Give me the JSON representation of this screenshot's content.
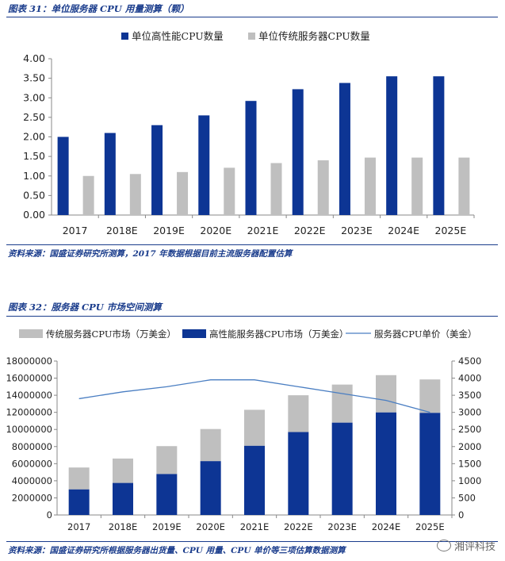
{
  "figure1": {
    "title": "图表 31：单位服务器 CPU 用量测算（颗）",
    "source": "资料来源：国盛证券研究所测算，2017 年数据根据目前主流服务器配置估算",
    "colors": {
      "high": "#0d3594",
      "trad": "#bfbfbf"
    },
    "chart_data": {
      "type": "bar",
      "categories": [
        "2017",
        "2018E",
        "2019E",
        "2020E",
        "2021E",
        "2022E",
        "2023E",
        "2024E",
        "2025E"
      ],
      "series": [
        {
          "name": "单位高性能CPU数量",
          "values": [
            2.0,
            2.1,
            2.3,
            2.55,
            2.92,
            3.22,
            3.38,
            3.55,
            3.55
          ]
        },
        {
          "name": "单位传统服务器CPU数量",
          "values": [
            1.0,
            1.05,
            1.1,
            1.21,
            1.33,
            1.4,
            1.47,
            1.47,
            1.47
          ]
        }
      ],
      "yticks": [
        "0.00",
        "0.50",
        "1.00",
        "1.50",
        "2.00",
        "2.50",
        "3.00",
        "3.50",
        "4.00"
      ],
      "ylim": [
        0,
        4
      ],
      "legend": "top"
    }
  },
  "figure2": {
    "title": "图表 32：服务器 CPU 市场空间测算",
    "source": "资料来源：国盛证券研究所根据服务器出货量、CPU 用量、CPU 单价等三项估算数据测算",
    "colors": {
      "high": "#0d3594",
      "trad": "#bfbfbf",
      "line": "#4a7ec2"
    },
    "chart_data": {
      "type": "bar",
      "stacked": true,
      "categories": [
        "2017",
        "2018E",
        "2019E",
        "2020E",
        "2021E",
        "2022E",
        "2023E",
        "2024E",
        "2025E"
      ],
      "series": [
        {
          "name": "高性能服务器CPU市场（万美金）",
          "values": [
            3000000,
            3750000,
            4800000,
            6300000,
            8100000,
            9700000,
            10800000,
            12000000,
            11950000
          ]
        },
        {
          "name": "传统服务器CPU市场（万美金）",
          "values": [
            2550000,
            2850000,
            3250000,
            3750000,
            4200000,
            4300000,
            4450000,
            4350000,
            3900000
          ]
        }
      ],
      "line_series": {
        "name": "服务器CPU单价（美金）",
        "values": [
          3400,
          3600,
          3750,
          3950,
          3950,
          3750,
          3550,
          3350,
          3000
        ]
      },
      "yticks_left": [
        "0",
        "2000000",
        "4000000",
        "6000000",
        "8000000",
        "10000000",
        "12000000",
        "14000000",
        "16000000",
        "18000000"
      ],
      "yticks_right": [
        "0",
        "500",
        "1000",
        "1500",
        "2000",
        "2500",
        "3000",
        "3500",
        "4000",
        "4500"
      ],
      "ylim_left": [
        0,
        18000000
      ],
      "ylim_right": [
        0,
        4500
      ],
      "legend": "top"
    }
  },
  "watermark": "湘评科技"
}
